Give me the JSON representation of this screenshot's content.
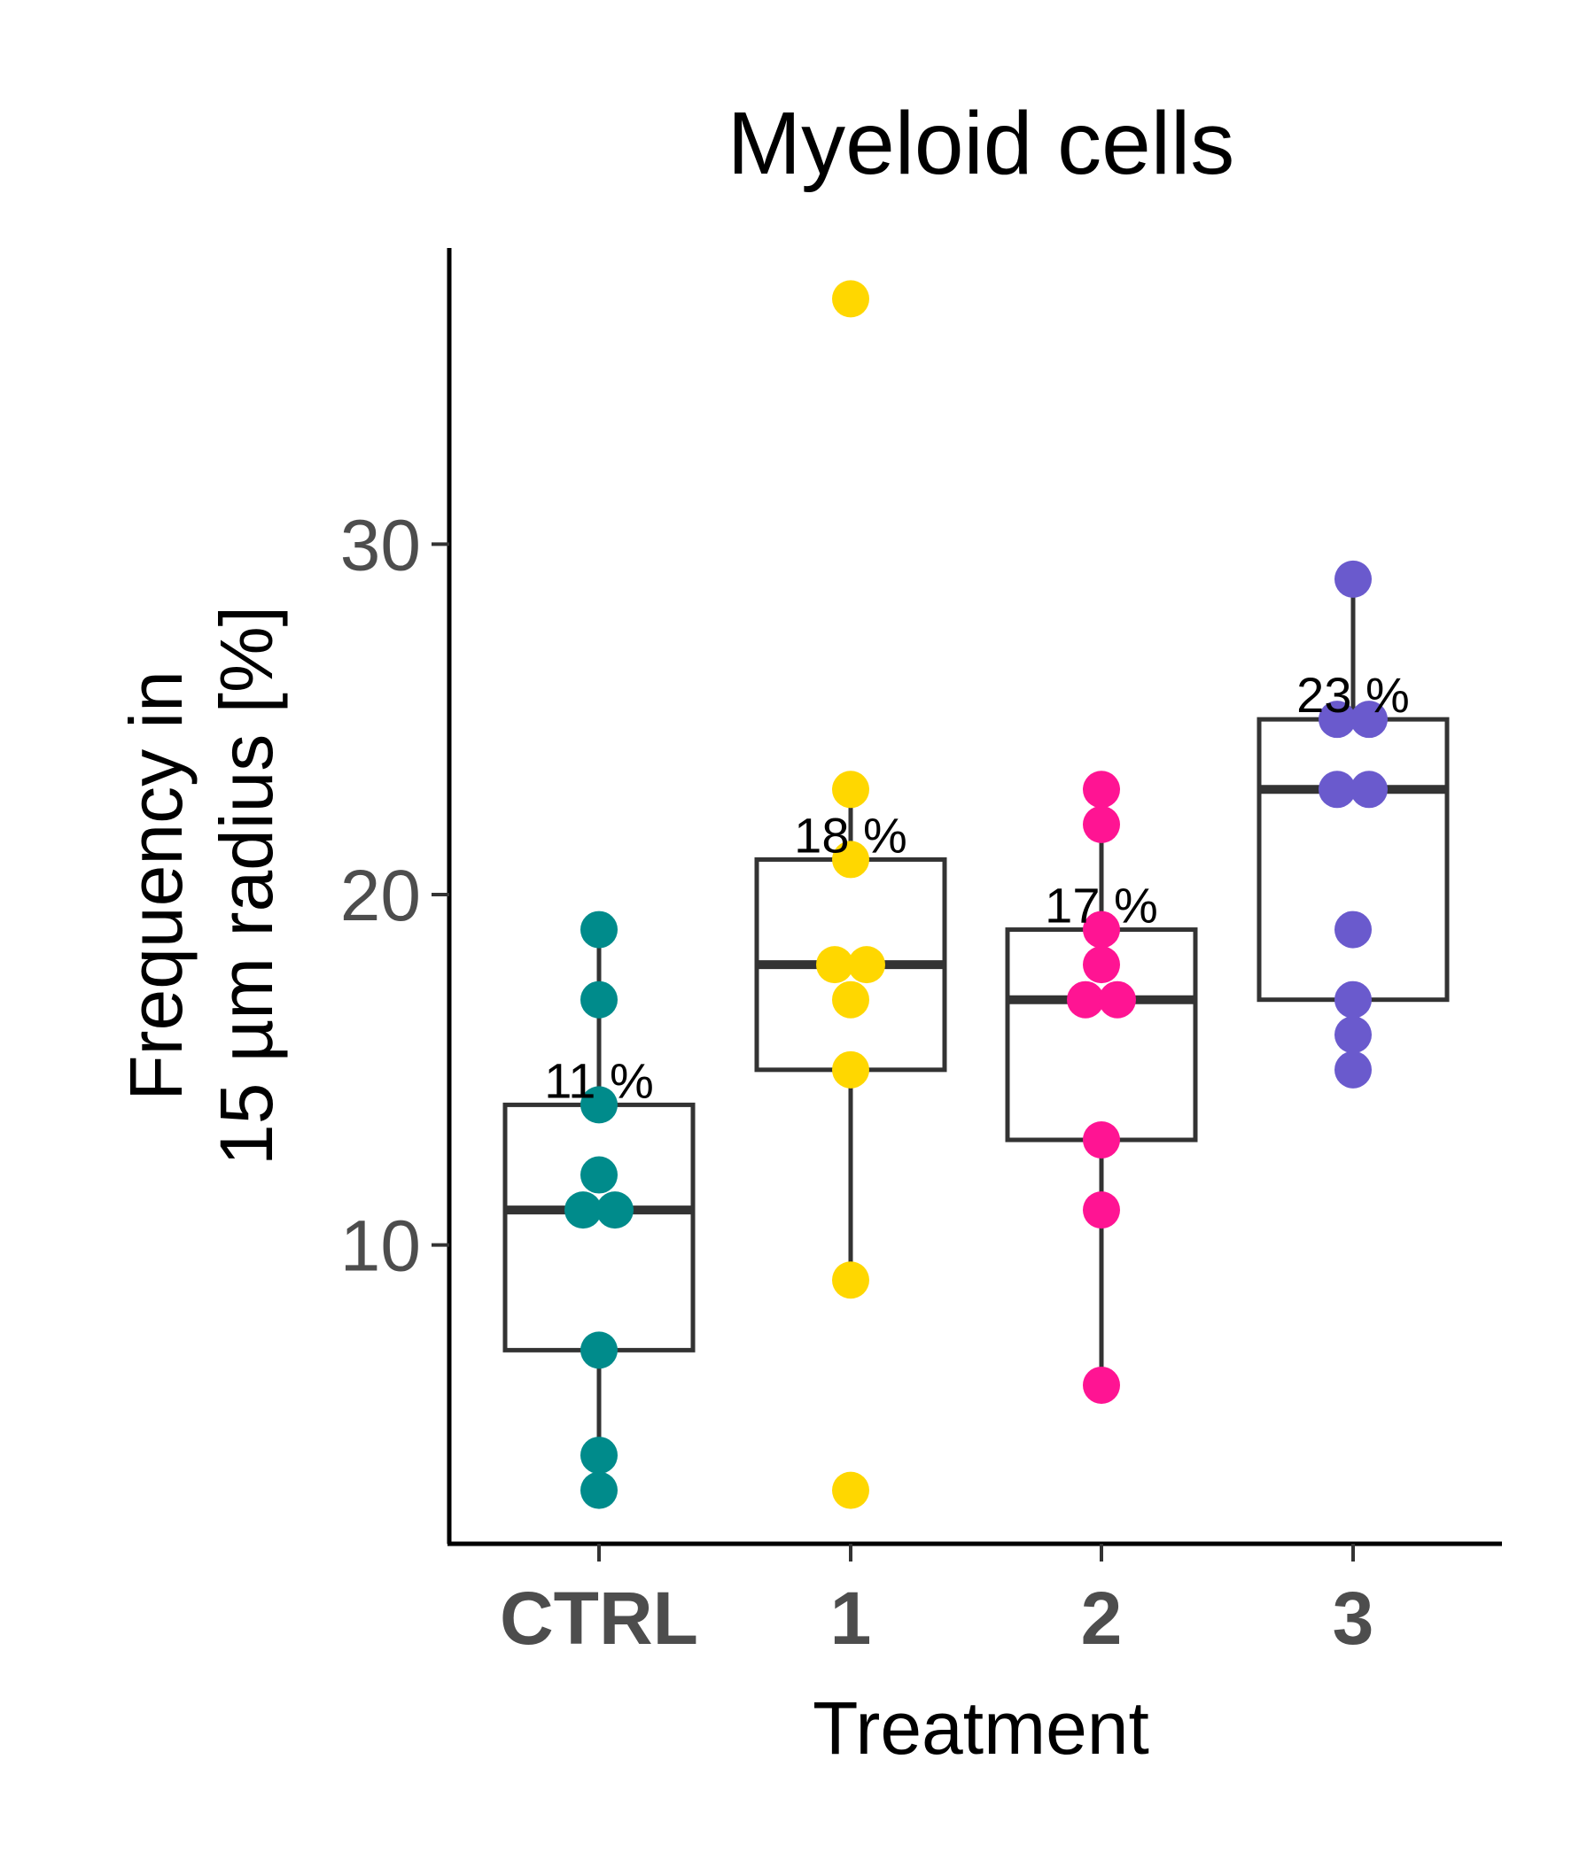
{
  "chart_data": {
    "type": "box",
    "title": "Myeloid cells",
    "xlabel": "Treatment",
    "ylabel_lines": [
      "Frequency in",
      "15 µm radius [%]"
    ],
    "categories": [
      "CTRL",
      "1",
      "2",
      "3"
    ],
    "colors": [
      "#008b8b",
      "#ffd700",
      "#ff1493",
      "#6a5acd"
    ],
    "yticks": [
      "10",
      "20",
      "30"
    ],
    "ytick_values": [
      10,
      20,
      30
    ],
    "ylim": [
      1.5,
      38.5
    ],
    "grid": false,
    "legend": "none",
    "boxes": [
      {
        "q1": 7,
        "median": 11,
        "q3": 14,
        "whisker_low": 3,
        "whisker_high": 19
      },
      {
        "q1": 15,
        "median": 18,
        "q3": 21,
        "whisker_low": 9,
        "whisker_high": 23
      },
      {
        "q1": 13,
        "median": 17,
        "q3": 19,
        "whisker_low": 6,
        "whisker_high": 23
      },
      {
        "q1": 17,
        "median": 23,
        "q3": 25,
        "whisker_low": 15,
        "whisker_high": 29
      }
    ],
    "median_labels": [
      "11 %",
      "18 %",
      "17 %",
      "23 %"
    ],
    "points": [
      [
        19,
        17,
        14,
        12,
        11,
        11,
        7,
        4,
        3
      ],
      [
        37,
        23,
        21,
        18,
        18,
        17,
        15,
        9,
        3
      ],
      [
        23,
        22,
        19,
        18,
        17,
        17,
        13,
        11,
        6
      ],
      [
        29,
        25,
        25,
        23,
        23,
        19,
        17,
        16,
        15
      ]
    ]
  }
}
